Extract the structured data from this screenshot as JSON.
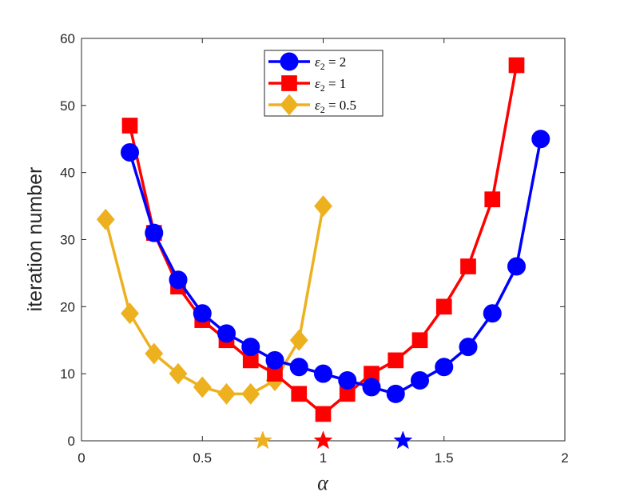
{
  "chart_data": {
    "type": "line",
    "xlabel": "α",
    "ylabel": "iteration number",
    "xlim": [
      0,
      2
    ],
    "ylim": [
      0,
      60
    ],
    "xticks": [
      0,
      0.5,
      1,
      1.5,
      2
    ],
    "xtick_labels": [
      "0",
      "0.5",
      "1",
      "1.5",
      "2"
    ],
    "yticks": [
      0,
      10,
      20,
      30,
      40,
      50,
      60
    ],
    "ytick_labels": [
      "0",
      "10",
      "20",
      "30",
      "40",
      "50",
      "60"
    ],
    "grid": false,
    "legend_position": "top-center",
    "series": [
      {
        "name": "ε2 = 2",
        "legend_main": "ε",
        "legend_sub": "2",
        "legend_rest": " = 2",
        "color": "#0000ff",
        "marker": "circle",
        "x": [
          0.2,
          0.3,
          0.4,
          0.5,
          0.6,
          0.7,
          0.8,
          0.9,
          1.0,
          1.1,
          1.2,
          1.3,
          1.4,
          1.5,
          1.6,
          1.7,
          1.8,
          1.9
        ],
        "y": [
          43,
          31,
          24,
          19,
          16,
          14,
          12,
          11,
          10,
          9,
          8,
          7,
          9,
          11,
          14,
          19,
          26,
          45
        ]
      },
      {
        "name": "ε2 = 1",
        "legend_main": "ε",
        "legend_sub": "2",
        "legend_rest": " = 1",
        "color": "#ff0000",
        "marker": "square",
        "x": [
          0.2,
          0.3,
          0.4,
          0.5,
          0.6,
          0.7,
          0.8,
          0.9,
          1.0,
          1.1,
          1.2,
          1.3,
          1.4,
          1.5,
          1.6,
          1.7,
          1.8
        ],
        "y": [
          47,
          31,
          23,
          18,
          15,
          12,
          10,
          7,
          4,
          7,
          10,
          12,
          15,
          20,
          26,
          36,
          56
        ]
      },
      {
        "name": "ε2 = 0.5",
        "legend_main": "ε",
        "legend_sub": "2",
        "legend_rest": " = 0.5",
        "color": "#edb120",
        "marker": "diamond",
        "x": [
          0.1,
          0.2,
          0.3,
          0.4,
          0.5,
          0.6,
          0.7,
          0.8,
          0.9,
          1.0
        ],
        "y": [
          33,
          19,
          13,
          10,
          8,
          7,
          7,
          9,
          15,
          35
        ]
      }
    ],
    "annotations": [
      {
        "type": "star",
        "x": 0.75,
        "y": 0,
        "color": "#edb120"
      },
      {
        "type": "star",
        "x": 1.0,
        "y": 0,
        "color": "#ff0000"
      },
      {
        "type": "star",
        "x": 1.33,
        "y": 0,
        "color": "#0000ff"
      }
    ]
  }
}
